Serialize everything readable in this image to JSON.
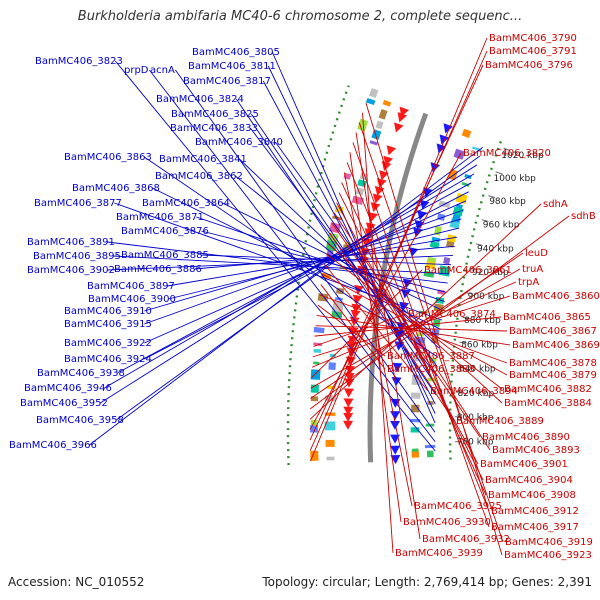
{
  "title": "Burkholderia ambifaria MC40-6 chromosome 2, complete sequenc...",
  "footer": {
    "accession": "Accession: NC_010552",
    "topology": "Topology: circular; Length: 2,769,414 bp; Genes: 2,391"
  },
  "colors": {
    "forward_labels": "#0000cc",
    "reverse_labels": "#cc0000",
    "backbone": "#888888",
    "gc_dots": "#2e8b2e",
    "forward_arrows": "#1a1aff",
    "reverse_arrows": "#ff1a1a"
  },
  "ruler_ticks": [
    "780 kbp",
    "800 kbp",
    "820 kbp",
    "840 kbp",
    "860 kbp",
    "880 kbp",
    "900 kbp",
    "920 kbp",
    "940 kbp",
    "960 kbp",
    "980 kbp",
    "1000 kbp",
    "1020 kbp"
  ],
  "forward_features": [
    "BamMC406_3823",
    "prpD",
    "acnA",
    "BamMC406_3805",
    "BamMC406_3811",
    "BamMC406_3817",
    "BamMC406_3824",
    "BamMC406_3825",
    "BamMC406_3833",
    "BamMC406_3840",
    "BamMC406_3863",
    "BamMC406_3841",
    "BamMC406_3862",
    "BamMC406_3868",
    "BamMC406_3877",
    "BamMC406_3864",
    "BamMC406_3871",
    "BamMC406_3876",
    "BamMC406_3891",
    "BamMC406_3895",
    "BamMC406_3885",
    "BamMC406_3902",
    "BamMC406_3886",
    "BamMC406_3897",
    "BamMC406_3900",
    "BamMC406_3910",
    "BamMC406_3915",
    "BamMC406_3922",
    "BamMC406_3924",
    "BamMC406_3938",
    "BamMC406_3946",
    "BamMC406_3952",
    "BamMC406_3958",
    "BamMC406_3966"
  ],
  "reverse_features": [
    "BamMC406_3790",
    "BamMC406_3791",
    "BamMC406_3796",
    "BamMC406_3820",
    "sdhA",
    "sdhB",
    "leuD",
    "truA",
    "BamMC406_3861",
    "trpA",
    "BamMC406_3860",
    "BamMC406_3874",
    "BamMC406_3865",
    "BamMC406_3867",
    "BamMC406_3869",
    "BamMC406_3887",
    "BamMC406_3878",
    "BamMC406_3888",
    "BamMC406_3879",
    "BamMC406_3894",
    "BamMC406_3882",
    "BamMC406_3884",
    "BamMC406_3889",
    "BamMC406_3890",
    "BamMC406_3893",
    "BamMC406_3901",
    "BamMC406_3904",
    "BamMC406_3908",
    "BamMC406_3925",
    "BamMC406_3912",
    "BamMC406_3930",
    "BamMC406_3917",
    "BamMC406_3932",
    "BamMC406_3919",
    "BamMC406_3939",
    "BamMC406_3923"
  ]
}
